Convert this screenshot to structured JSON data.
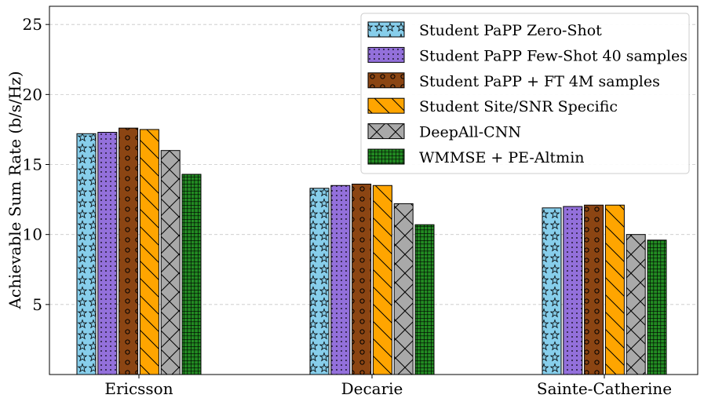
{
  "chart_data": {
    "type": "bar",
    "title": "",
    "xlabel": "",
    "ylabel": "Achievable Sum Rate (b/s/Hz)",
    "ylim": [
      0,
      26.3
    ],
    "yticks": [
      5,
      10,
      15,
      20,
      25
    ],
    "grid": "horizontal dashed",
    "legend_position": "top-right",
    "categories": [
      "Ericsson",
      "Decarie",
      "Sainte-Catherine"
    ],
    "series": [
      {
        "name": "Student PaPP Zero-Shot",
        "color": "#87ceeb",
        "hatch": "stars",
        "values": [
          17.2,
          13.3,
          11.9
        ]
      },
      {
        "name": "Student PaPP Few-Shot 40 samples",
        "color": "#9370db",
        "hatch": "dots",
        "values": [
          17.3,
          13.5,
          12.0
        ]
      },
      {
        "name": "Student PaPP + FT 4M samples",
        "color": "#8b4513",
        "hatch": "circles",
        "values": [
          17.6,
          13.6,
          12.1
        ]
      },
      {
        "name": "Student Site/SNR Specific",
        "color": "#ffa500",
        "hatch": "backslash",
        "values": [
          17.5,
          13.5,
          12.1
        ]
      },
      {
        "name": "DeepAll-CNN",
        "color": "#a9a9a9",
        "hatch": "crosshatch",
        "values": [
          16.0,
          12.2,
          10.0
        ]
      },
      {
        "name": "WMMSE + PE-Altmin",
        "color": "#228b22",
        "hatch": "grid",
        "values": [
          14.3,
          10.7,
          9.6
        ]
      }
    ]
  }
}
